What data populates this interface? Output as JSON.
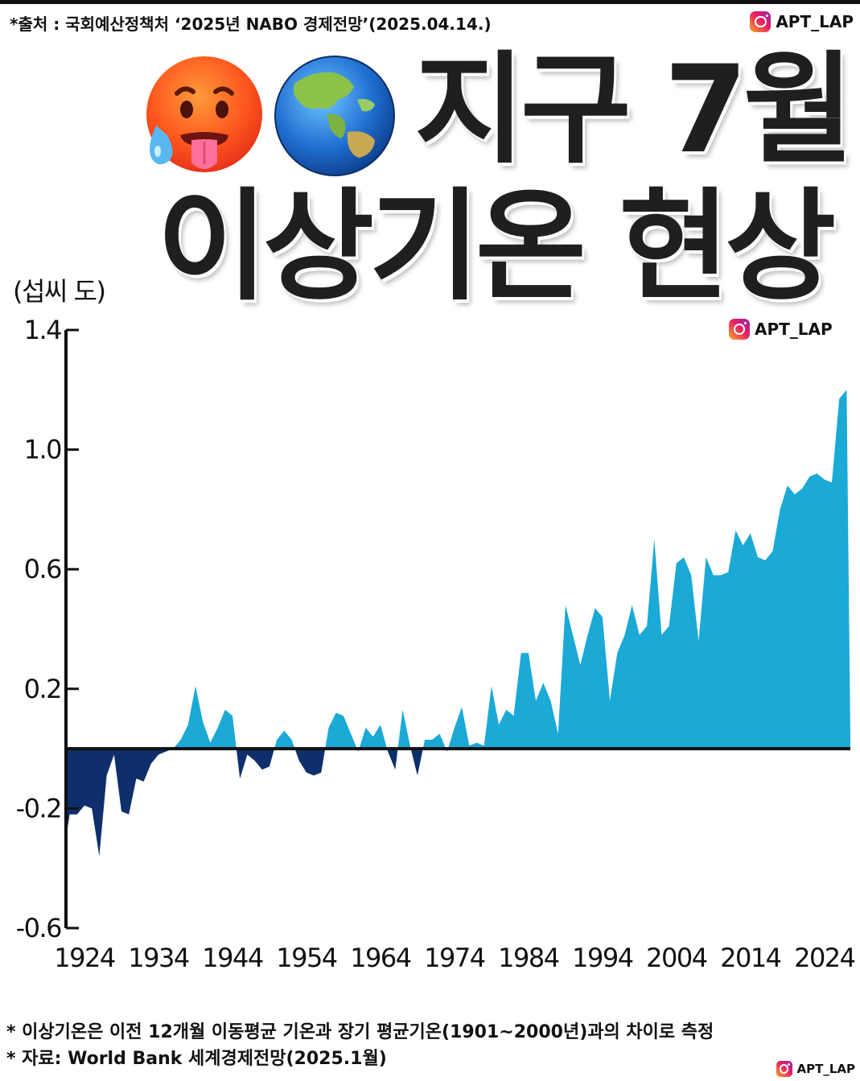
{
  "header": {
    "source_note": "*출처 : 국회예산정책처 ‘2025년 NABO 경제전망’(2025.04.14.)",
    "brand": "APT_LAP"
  },
  "title": {
    "line1": "지구 7월",
    "line2": "이상기온 현상",
    "emoji": [
      "hot-face",
      "globe-asia-australia"
    ]
  },
  "colors": {
    "positive": "#1ba9d6",
    "negative": "#0e2f6b",
    "axis": "#111111"
  },
  "footnotes": {
    "line1": "* 이상기온은 이전 12개월 이동평균 기온과 장기 평균기온(1901~2000년)과의 차이로 측정",
    "line2": "* 자료: World Bank 세계경제전망(2025.1월)"
  },
  "chart_data": {
    "type": "area",
    "ylabel": "(섭씨 도)",
    "xlabel": "",
    "ylim": [
      -0.6,
      1.4
    ],
    "yticks": [
      -0.6,
      -0.2,
      0.2,
      0.6,
      1.0,
      1.4
    ],
    "ytick_labels": [
      "-0.6",
      "-0.2",
      "0.2",
      "0.6",
      "1.0",
      "1.4"
    ],
    "xlim": [
      1921.5,
      2027.5
    ],
    "xticks": [
      1924,
      1934,
      1944,
      1954,
      1964,
      1974,
      1984,
      1994,
      2004,
      2014,
      2024
    ],
    "xtick_labels": [
      "1924",
      "1934",
      "1944",
      "1954",
      "1964",
      "1974",
      "1984",
      "1994",
      "2004",
      "2014",
      "2024"
    ],
    "grid": false,
    "x": [
      1921.5,
      1922,
      1923,
      1924,
      1925,
      1926,
      1927,
      1928,
      1929,
      1930,
      1931,
      1932,
      1933,
      1934,
      1935,
      1936,
      1937,
      1938,
      1939,
      1940,
      1941,
      1942,
      1943,
      1944,
      1945,
      1946,
      1947,
      1948,
      1949,
      1950,
      1951,
      1952,
      1953,
      1954,
      1955,
      1956,
      1957,
      1958,
      1959,
      1960,
      1961,
      1962,
      1963,
      1964,
      1965,
      1966,
      1967,
      1968,
      1969,
      1970,
      1971,
      1972,
      1973,
      1974,
      1975,
      1976,
      1977,
      1978,
      1979,
      1980,
      1981,
      1982,
      1983,
      1984,
      1985,
      1986,
      1987,
      1988,
      1989,
      1990,
      1991,
      1992,
      1993,
      1994,
      1995,
      1996,
      1997,
      1998,
      1999,
      2000,
      2001,
      2002,
      2003,
      2004,
      2005,
      2006,
      2007,
      2008,
      2009,
      2010,
      2011,
      2012,
      2013,
      2014,
      2015,
      2016,
      2017,
      2018,
      2019,
      2020,
      2021,
      2022,
      2023,
      2024,
      2025,
      2026,
      2027,
      2027.5
    ],
    "values": [
      -0.3,
      -0.22,
      -0.22,
      -0.19,
      -0.2,
      -0.36,
      -0.09,
      -0.02,
      -0.21,
      -0.22,
      -0.1,
      -0.11,
      -0.05,
      -0.02,
      -0.01,
      0.0,
      0.03,
      0.08,
      0.21,
      0.09,
      0.02,
      0.07,
      0.13,
      0.11,
      -0.1,
      -0.02,
      -0.04,
      -0.07,
      -0.06,
      0.03,
      0.06,
      0.03,
      -0.04,
      -0.08,
      -0.09,
      -0.08,
      0.07,
      0.12,
      0.11,
      0.05,
      -0.01,
      0.07,
      0.04,
      0.08,
      -0.01,
      -0.07,
      0.13,
      0.01,
      -0.09,
      0.03,
      0.03,
      0.05,
      -0.01,
      0.07,
      0.14,
      0.01,
      0.02,
      0.01,
      0.21,
      0.08,
      0.13,
      0.11,
      0.32,
      0.32,
      0.16,
      0.22,
      0.16,
      0.05,
      0.48,
      0.38,
      0.28,
      0.38,
      0.47,
      0.44,
      0.16,
      0.32,
      0.38,
      0.48,
      0.38,
      0.41,
      0.7,
      0.38,
      0.41,
      0.62,
      0.64,
      0.58,
      0.36,
      0.64,
      0.58,
      0.58,
      0.59,
      0.73,
      0.68,
      0.72,
      0.64,
      0.63,
      0.66,
      0.8,
      0.88,
      0.85,
      0.87,
      0.91,
      0.92,
      0.9,
      0.89,
      1.17,
      1.2,
      0.04
    ]
  }
}
